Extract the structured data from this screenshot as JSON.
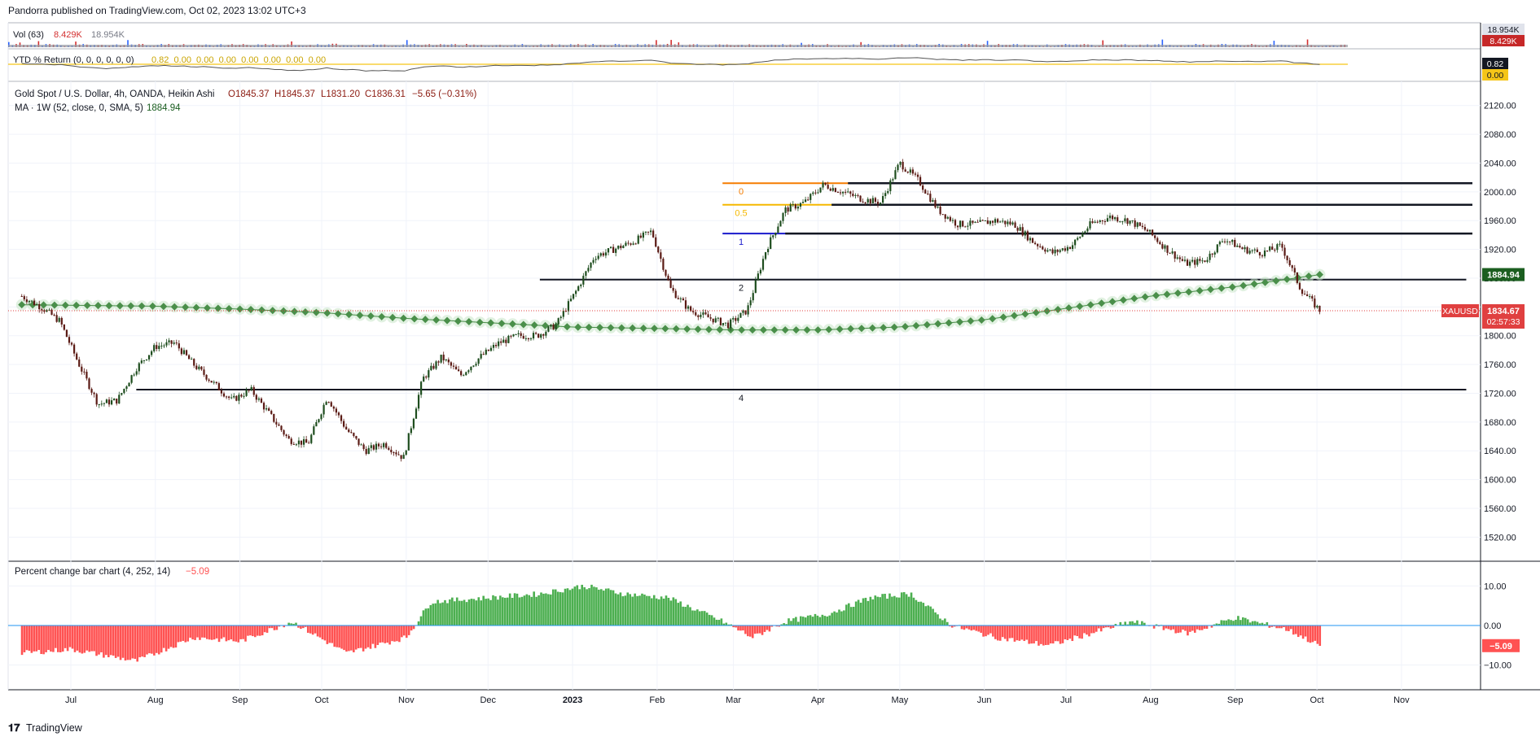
{
  "header": {
    "published": "Pandorra published on TradingView.com, Oct 02, 2023 13:02 UTC+3"
  },
  "footer": {
    "brand": "TradingView"
  },
  "colors": {
    "grid": "#f0f3fa",
    "axis_text": "#131722",
    "candle_up": "#1e4d1e",
    "candle_down": "#5a1a14",
    "ma": "#4a8f4a",
    "ma_glow": "#c8e6c9",
    "hist_pos": "#4caf50",
    "hist_neg": "#ff5252",
    "hist_zero": "#2196f3",
    "vol_down": "#d32f2f",
    "vol_up": "#2962ff",
    "ytd_line": "#555555",
    "ytd_zero": "#f5c518",
    "price_label_bg": "#e04040",
    "ma_label_bg": "#1b5e20",
    "fib_0": "#f57c00",
    "fib_05": "#f5b800",
    "fib_1": "#1a1acc",
    "fib_other": "#131722"
  },
  "volume_pane": {
    "label": "Vol (63)",
    "value_1": "8.429K",
    "value_2": "18.954K",
    "axis_label_top": "18.954K",
    "axis_label_bottom": "8.429K"
  },
  "ytd_pane": {
    "label": "YTD % Return (0, 0, 0, 0, 0, 0)",
    "values": "0.82  0.00  0.00  0.00  0.00  0.00  0.00  0.00",
    "axis_label_top": "0.82",
    "axis_label_bottom": "0.00"
  },
  "main_pane": {
    "legend_title": "Gold Spot / U.S. Dollar, 4h, OANDA, Heikin Ashi",
    "open": "O1845.37",
    "high": "H1845.37",
    "low": "L1831.20",
    "close": "C1836.31",
    "change": "−5.65 (−0.31%)",
    "ma_legend": "MA · 1W (52, close, 0, SMA, 5)",
    "ma_value": "1884.94",
    "symbol_label": "XAUUSD",
    "price_label": "1834.67",
    "countdown": "02:57:33",
    "ma_axis_label": "1884.94"
  },
  "osc_pane": {
    "label": "Percent change bar chart (4, 252, 14)",
    "value": "−5.09",
    "current_label": "−5.09"
  },
  "chart_data": {
    "type": "line",
    "x_axis": {
      "tick_labels": [
        "Jul",
        "Aug",
        "Sep",
        "Oct",
        "Nov",
        "Dec",
        "2023",
        "Feb",
        "Mar",
        "Apr",
        "May",
        "Jun",
        "Jul",
        "Aug",
        "Sep",
        "Oct",
        "Nov"
      ]
    },
    "price_axis": {
      "ticks": [
        1520,
        1560,
        1600,
        1640,
        1680,
        1720,
        1760,
        1800,
        1840,
        1880,
        1920,
        1960,
        2000,
        2040,
        2080,
        2120
      ],
      "ylim": [
        1500,
        2140
      ]
    },
    "osc_axis": {
      "ticks": [
        10.0,
        0.0,
        -10.0
      ],
      "tick_labels": [
        "10.00",
        "0.00",
        "−10.00"
      ],
      "ylim": [
        -15,
        15
      ]
    },
    "price_series": {
      "name": "XAUUSD",
      "x": [
        "2022-06-13",
        "2022-06-20",
        "2022-06-27",
        "2022-07-04",
        "2022-07-11",
        "2022-07-18",
        "2022-07-25",
        "2022-08-01",
        "2022-08-08",
        "2022-08-15",
        "2022-08-22",
        "2022-08-29",
        "2022-09-05",
        "2022-09-12",
        "2022-09-19",
        "2022-09-26",
        "2022-10-03",
        "2022-10-10",
        "2022-10-17",
        "2022-10-24",
        "2022-10-31",
        "2022-11-07",
        "2022-11-14",
        "2022-11-21",
        "2022-11-28",
        "2022-12-05",
        "2022-12-12",
        "2022-12-19",
        "2022-12-26",
        "2023-01-02",
        "2023-01-09",
        "2023-01-16",
        "2023-01-23",
        "2023-01-30",
        "2023-02-06",
        "2023-02-13",
        "2023-02-20",
        "2023-02-27",
        "2023-03-06",
        "2023-03-13",
        "2023-03-20",
        "2023-03-27",
        "2023-04-03",
        "2023-04-10",
        "2023-04-17",
        "2023-04-24",
        "2023-05-01",
        "2023-05-08",
        "2023-05-15",
        "2023-05-22",
        "2023-05-29",
        "2023-06-05",
        "2023-06-12",
        "2023-06-19",
        "2023-06-26",
        "2023-07-03",
        "2023-07-10",
        "2023-07-17",
        "2023-07-24",
        "2023-07-31",
        "2023-08-07",
        "2023-08-14",
        "2023-08-21",
        "2023-08-28",
        "2023-09-04",
        "2023-09-11",
        "2023-09-18",
        "2023-09-25",
        "2023-10-02"
      ],
      "y": [
        1855,
        1840,
        1820,
        1760,
        1705,
        1710,
        1755,
        1785,
        1790,
        1760,
        1735,
        1710,
        1725,
        1690,
        1655,
        1650,
        1715,
        1670,
        1640,
        1650,
        1630,
        1740,
        1770,
        1745,
        1770,
        1790,
        1800,
        1800,
        1815,
        1860,
        1910,
        1920,
        1930,
        1945,
        1865,
        1835,
        1825,
        1815,
        1835,
        1920,
        1975,
        1985,
        2010,
        2000,
        1990,
        1985,
        2040,
        2015,
        1975,
        1955,
        1955,
        1960,
        1955,
        1930,
        1915,
        1925,
        1955,
        1965,
        1960,
        1945,
        1920,
        1900,
        1905,
        1935,
        1920,
        1915,
        1925,
        1865,
        1835
      ]
    },
    "ma_series": {
      "name": "MA · 1W (52, close, 0, SMA, 5)",
      "x": [
        "2022-06-13",
        "2022-08-01",
        "2022-09-01",
        "2022-10-01",
        "2022-11-01",
        "2022-12-01",
        "2023-01-01",
        "2023-02-01",
        "2023-03-01",
        "2023-04-01",
        "2023-05-01",
        "2023-06-01",
        "2023-07-01",
        "2023-08-01",
        "2023-09-01",
        "2023-10-02"
      ],
      "y": [
        1843,
        1841,
        1837,
        1832,
        1824,
        1818,
        1812,
        1810,
        1808,
        1808,
        1812,
        1822,
        1838,
        1855,
        1868,
        1884.94
      ]
    },
    "horizontal_levels": [
      {
        "label": "0",
        "value": 2012
      },
      {
        "label": "0.5",
        "value": 1982
      },
      {
        "label": "1",
        "value": 1942
      },
      {
        "label": "2",
        "value": 1878
      },
      {
        "label": "4",
        "value": 1725
      }
    ],
    "oscillator_series": {
      "name": "Percent change bar chart (4, 252, 14)",
      "x": [
        "2022-06-13",
        "2022-07-01",
        "2022-07-25",
        "2022-08-15",
        "2022-09-01",
        "2022-09-20",
        "2022-10-10",
        "2022-11-01",
        "2022-11-10",
        "2022-12-01",
        "2022-12-20",
        "2023-01-05",
        "2023-01-20",
        "2023-02-05",
        "2023-02-25",
        "2023-03-08",
        "2023-03-20",
        "2023-04-05",
        "2023-04-20",
        "2023-05-05",
        "2023-05-20",
        "2023-06-05",
        "2023-06-25",
        "2023-07-15",
        "2023-07-25",
        "2023-08-15",
        "2023-09-01",
        "2023-09-20",
        "2023-10-02"
      ],
      "y": [
        -7,
        -6,
        -9,
        -3,
        -4,
        1,
        -7,
        -3,
        6,
        7,
        8,
        10,
        8,
        7,
        1,
        -3,
        1,
        3,
        7,
        8,
        0,
        -3,
        -5,
        -1,
        1,
        -2,
        2,
        -1,
        -5.09
      ]
    }
  }
}
